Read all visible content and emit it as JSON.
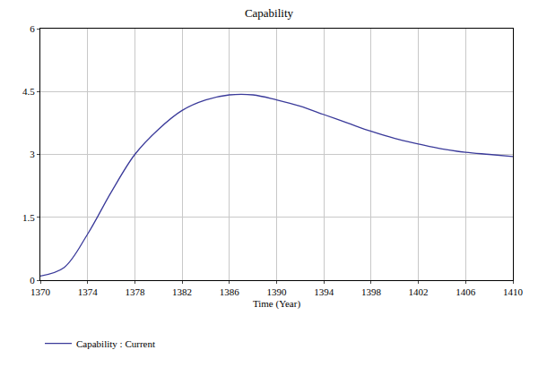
{
  "chart_data": {
    "type": "line",
    "title": "Capability",
    "x_label": "Time (Year)",
    "x": [
      1370,
      1372,
      1374,
      1376,
      1378,
      1380,
      1382,
      1384,
      1386,
      1388,
      1390,
      1392,
      1394,
      1396,
      1398,
      1400,
      1402,
      1404,
      1406,
      1408,
      1410
    ],
    "series": [
      {
        "name": "Capability : Current",
        "color": "#3a3a9a",
        "values": [
          0.1,
          0.3,
          1.1,
          2.1,
          3.0,
          3.6,
          4.05,
          4.3,
          4.42,
          4.42,
          4.3,
          4.15,
          3.95,
          3.75,
          3.55,
          3.38,
          3.25,
          3.13,
          3.05,
          3.0,
          2.95
        ]
      }
    ],
    "xlim": [
      1370,
      1410
    ],
    "xticks": [
      1370,
      1374,
      1378,
      1382,
      1386,
      1390,
      1394,
      1398,
      1402,
      1406,
      1410
    ],
    "ylim": [
      0,
      6
    ],
    "yticks": [
      0,
      1.5,
      3,
      4.5,
      6
    ],
    "grid": true,
    "legend": "bottom"
  }
}
